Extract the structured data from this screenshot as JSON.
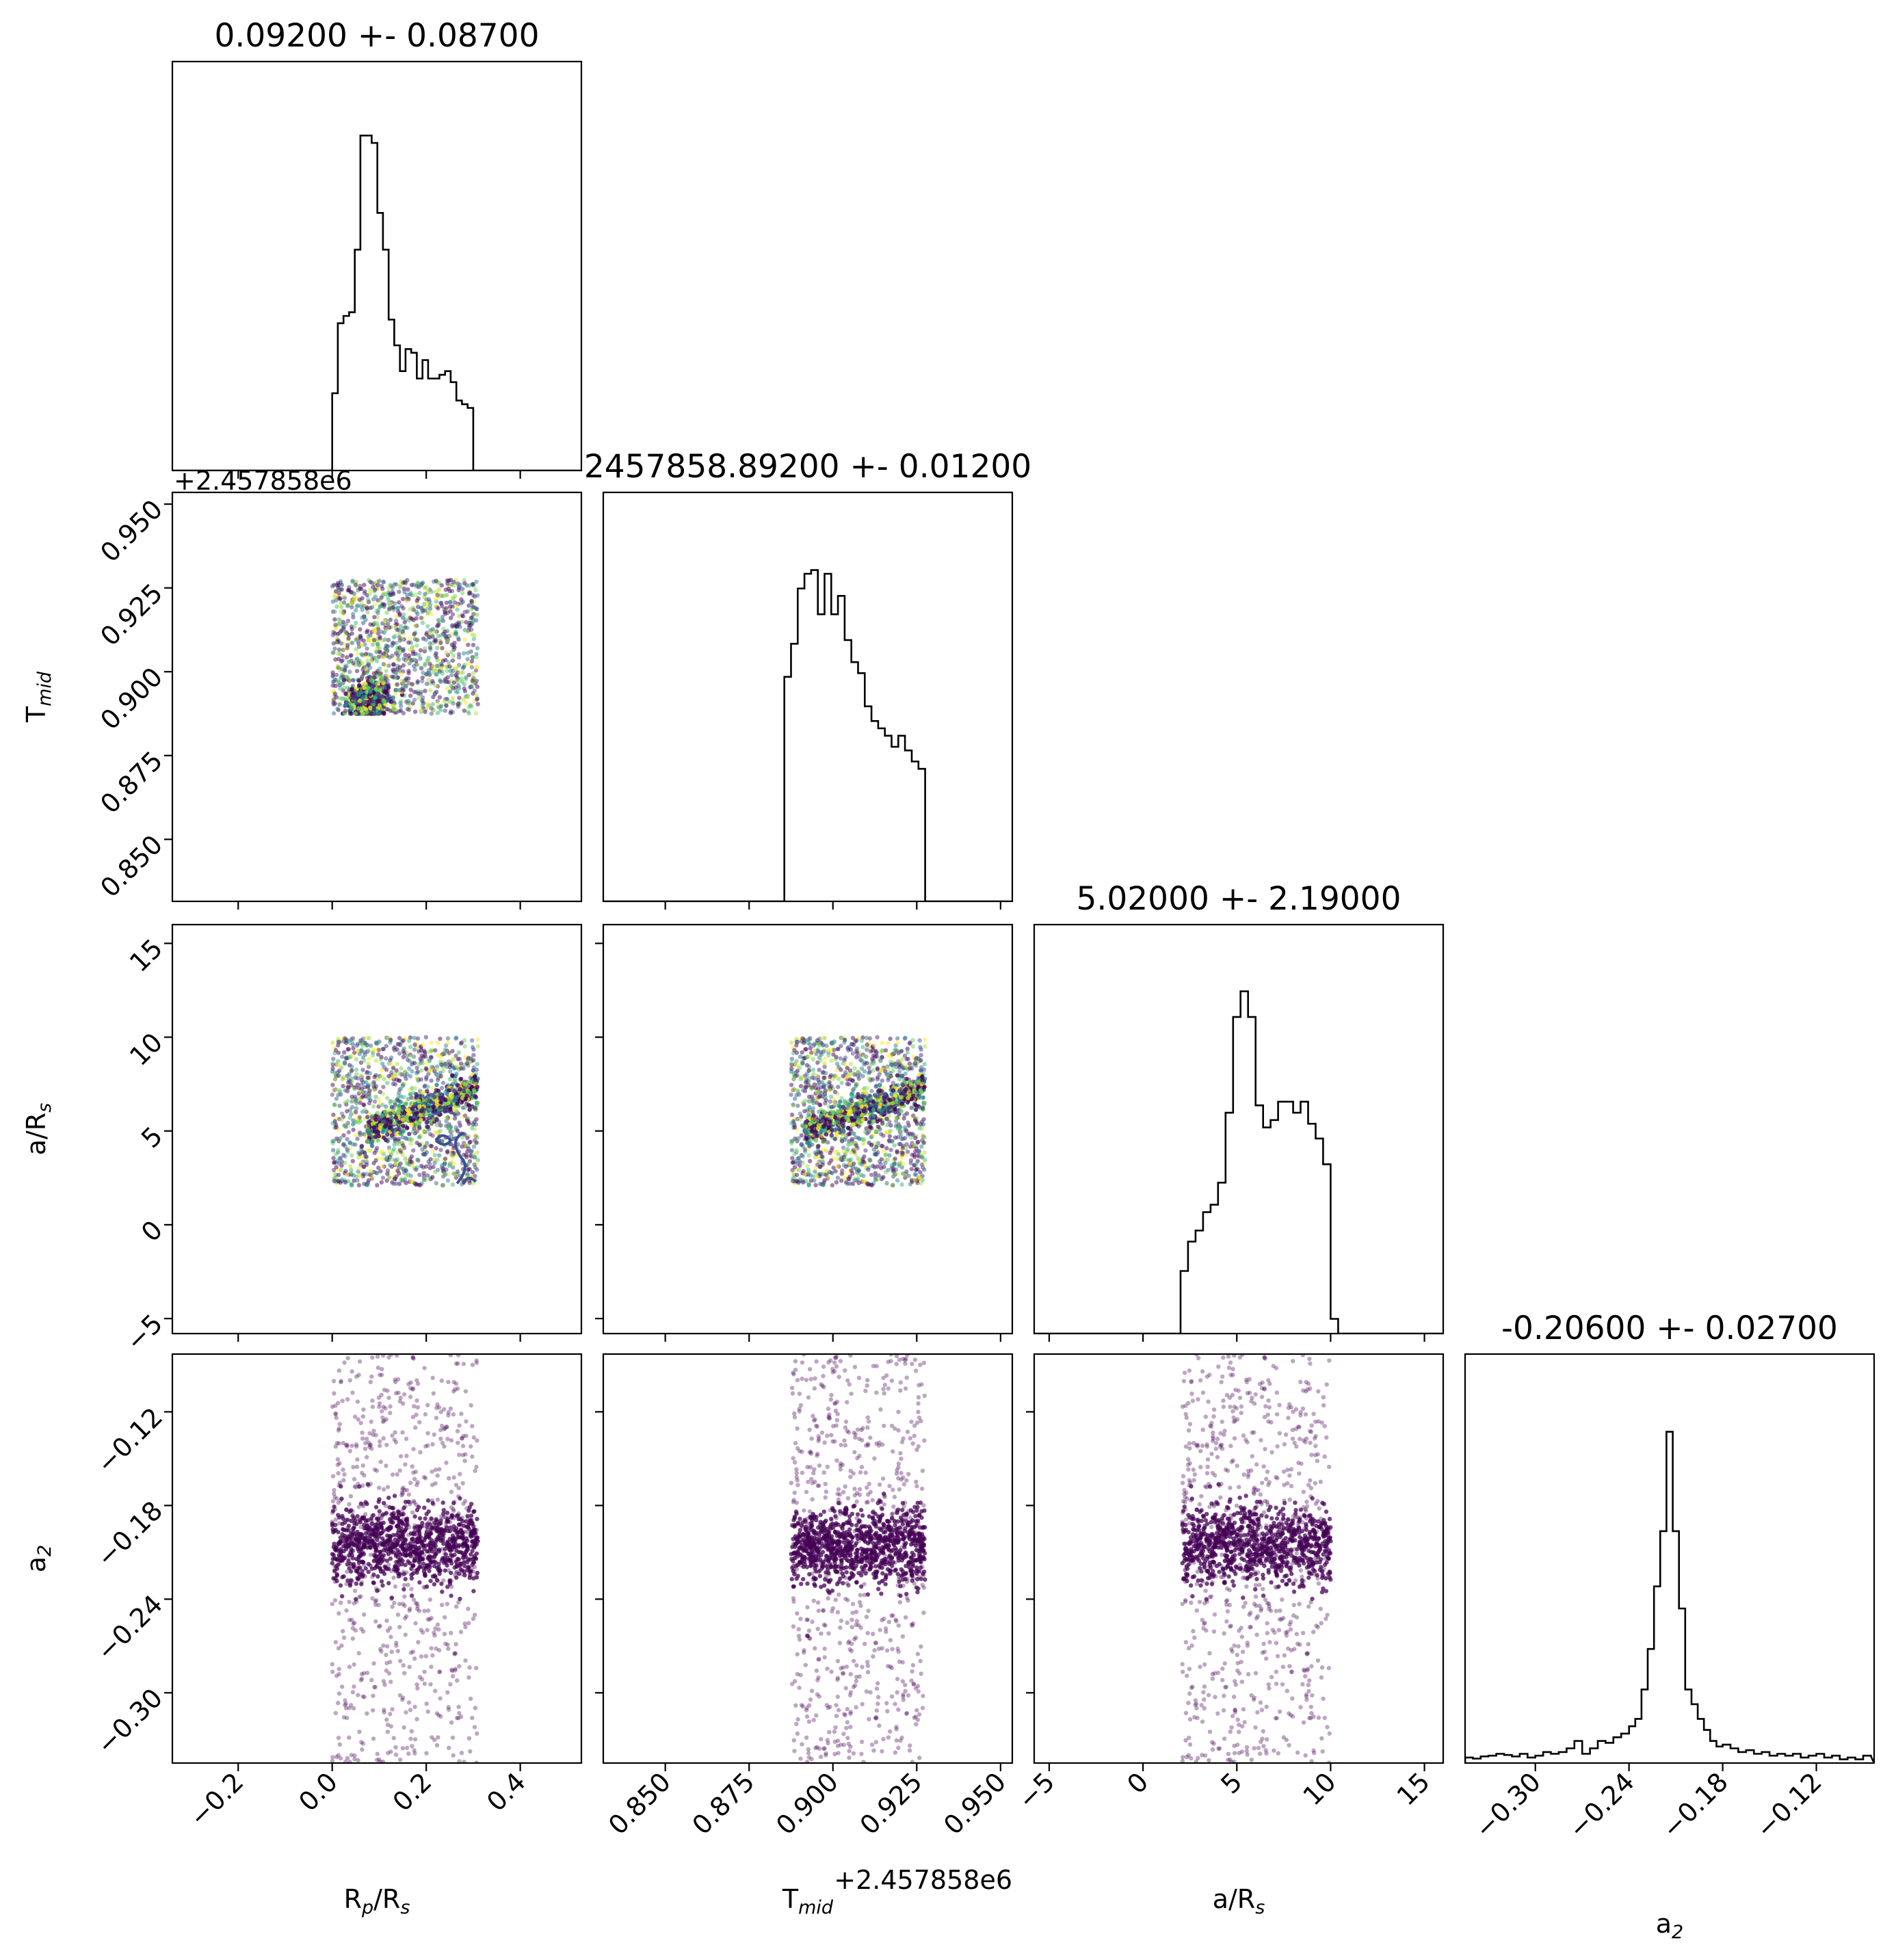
{
  "chart_data": {
    "type": "corner",
    "colors": {
      "hist": "#000000",
      "points": "#440154",
      "contour": "#3b528b"
    },
    "params": [
      {
        "key": "rp",
        "label_main": "R",
        "label_sub1": "p",
        "label_mid": "/R",
        "label_sub2": "s",
        "title": "0.09200 +- 0.08700",
        "range": [
          -0.34,
          0.53
        ],
        "ticks": [
          -0.2,
          0.0,
          0.2,
          0.4
        ],
        "tick_labels": [
          "−0.2",
          "0.0",
          "0.2",
          "0.4"
        ],
        "offset_text": "",
        "hist_counts": [
          0,
          0,
          0,
          0,
          0,
          0,
          0,
          0,
          0,
          0,
          0,
          0,
          0,
          0,
          0,
          0,
          0,
          0,
          0,
          0,
          0,
          0,
          0,
          0,
          0,
          0,
          0,
          0,
          0,
          0,
          0,
          0,
          0,
          0,
          0,
          0,
          0,
          0,
          0,
          0,
          0,
          0,
          0,
          0,
          0,
          0,
          0,
          0,
          0,
          0,
          0,
          0,
          0,
          0,
          0,
          0,
          0,
          0,
          0,
          0,
          0,
          0,
          0,
          0,
          0,
          0,
          0,
          0,
          0,
          0,
          0,
          0,
          0,
          0,
          0,
          0,
          0,
          0,
          0,
          0,
          0,
          0,
          0,
          0,
          0,
          0,
          0,
          0,
          0,
          0,
          0,
          0,
          0,
          0,
          0,
          0,
          0,
          0,
          0,
          0
        ],
        "hist_edges": [
          -0.34,
          0.53
        ],
        "hist_profile": [
          [
            -0.005,
            0.0
          ],
          [
            0.0,
            0.21
          ],
          [
            0.012,
            0.4
          ],
          [
            0.024,
            0.42
          ],
          [
            0.036,
            0.43
          ],
          [
            0.048,
            0.6
          ],
          [
            0.06,
            0.91
          ],
          [
            0.072,
            0.91
          ],
          [
            0.084,
            0.89
          ],
          [
            0.096,
            0.7
          ],
          [
            0.108,
            0.6
          ],
          [
            0.12,
            0.41
          ],
          [
            0.132,
            0.34
          ],
          [
            0.144,
            0.27
          ],
          [
            0.156,
            0.33
          ],
          [
            0.168,
            0.32
          ],
          [
            0.18,
            0.25
          ],
          [
            0.192,
            0.3
          ],
          [
            0.204,
            0.25
          ],
          [
            0.216,
            0.25
          ],
          [
            0.228,
            0.26
          ],
          [
            0.24,
            0.27
          ],
          [
            0.252,
            0.24
          ],
          [
            0.264,
            0.19
          ],
          [
            0.276,
            0.18
          ],
          [
            0.288,
            0.17
          ],
          [
            0.3,
            0.0
          ]
        ]
      },
      {
        "key": "tmid",
        "label_main": "T",
        "label_sub1": "mid",
        "label_mid": "",
        "label_sub2": "",
        "title": "2457858.89200 +- 0.01200",
        "range": [
          0.8315,
          0.9535
        ],
        "ticks": [
          0.85,
          0.875,
          0.9,
          0.925,
          0.95
        ],
        "tick_labels": [
          "0.850",
          "0.875",
          "0.900",
          "0.925",
          "0.950"
        ],
        "offset_text": "+2.457858e6",
        "hist_profile": [
          [
            0.8855,
            0.0
          ],
          [
            0.8855,
            0.61
          ],
          [
            0.8875,
            0.7
          ],
          [
            0.8895,
            0.85
          ],
          [
            0.8915,
            0.89
          ],
          [
            0.8935,
            0.9
          ],
          [
            0.8955,
            0.78
          ],
          [
            0.8975,
            0.89
          ],
          [
            0.8995,
            0.78
          ],
          [
            0.9015,
            0.83
          ],
          [
            0.9035,
            0.71
          ],
          [
            0.9055,
            0.65
          ],
          [
            0.9075,
            0.62
          ],
          [
            0.9095,
            0.53
          ],
          [
            0.9115,
            0.49
          ],
          [
            0.9135,
            0.47
          ],
          [
            0.9155,
            0.45
          ],
          [
            0.9175,
            0.42
          ],
          [
            0.9195,
            0.45
          ],
          [
            0.9215,
            0.41
          ],
          [
            0.9235,
            0.38
          ],
          [
            0.9255,
            0.36
          ],
          [
            0.9275,
            0.0
          ]
        ]
      },
      {
        "key": "ars",
        "label_main": "a/R",
        "label_sub1": "",
        "label_mid": "",
        "label_sub2": "s",
        "title": "5.02000 +- 2.19000",
        "range": [
          -5.8,
          16.0
        ],
        "ticks": [
          -5,
          0,
          5,
          10,
          15
        ],
        "tick_labels": [
          "−5",
          "0",
          "5",
          "10",
          "15"
        ],
        "offset_text": "",
        "hist_profile": [
          [
            2.0,
            0.0
          ],
          [
            2.0,
            0.17
          ],
          [
            2.4,
            0.25
          ],
          [
            2.8,
            0.28
          ],
          [
            3.2,
            0.33
          ],
          [
            3.6,
            0.35
          ],
          [
            4.0,
            0.41
          ],
          [
            4.4,
            0.6
          ],
          [
            4.8,
            0.86
          ],
          [
            5.2,
            0.93
          ],
          [
            5.6,
            0.86
          ],
          [
            6.0,
            0.62
          ],
          [
            6.4,
            0.56
          ],
          [
            6.8,
            0.58
          ],
          [
            7.2,
            0.63
          ],
          [
            7.6,
            0.63
          ],
          [
            8.0,
            0.6
          ],
          [
            8.4,
            0.63
          ],
          [
            8.8,
            0.57
          ],
          [
            9.2,
            0.53
          ],
          [
            9.6,
            0.46
          ],
          [
            10.0,
            0.04
          ],
          [
            10.4,
            0.0
          ]
        ]
      },
      {
        "key": "a2",
        "label_main": "a",
        "label_sub1": "",
        "label_mid": "",
        "label_sub2": "2",
        "title": "-0.20600 +- 0.02700",
        "range": [
          -0.345,
          -0.083
        ],
        "ticks": [
          -0.3,
          -0.24,
          -0.18,
          -0.12
        ],
        "tick_labels": [
          "−0.30",
          "−0.24",
          "−0.18",
          "−0.12"
        ],
        "offset_text": "",
        "hist_profile": [
          [
            -0.345,
            0.015
          ],
          [
            -0.34,
            0.012
          ],
          [
            -0.335,
            0.018
          ],
          [
            -0.33,
            0.02
          ],
          [
            -0.325,
            0.025
          ],
          [
            -0.32,
            0.022
          ],
          [
            -0.315,
            0.018
          ],
          [
            -0.31,
            0.025
          ],
          [
            -0.305,
            0.015
          ],
          [
            -0.3,
            0.02
          ],
          [
            -0.295,
            0.03
          ],
          [
            -0.29,
            0.025
          ],
          [
            -0.285,
            0.03
          ],
          [
            -0.28,
            0.04
          ],
          [
            -0.275,
            0.06
          ],
          [
            -0.27,
            0.025
          ],
          [
            -0.265,
            0.04
          ],
          [
            -0.26,
            0.06
          ],
          [
            -0.255,
            0.055
          ],
          [
            -0.25,
            0.07
          ],
          [
            -0.245,
            0.08
          ],
          [
            -0.24,
            0.1
          ],
          [
            -0.236,
            0.12
          ],
          [
            -0.232,
            0.2
          ],
          [
            -0.228,
            0.31
          ],
          [
            -0.224,
            0.48
          ],
          [
            -0.22,
            0.63
          ],
          [
            -0.216,
            0.9
          ],
          [
            -0.212,
            0.63
          ],
          [
            -0.208,
            0.42
          ],
          [
            -0.204,
            0.2
          ],
          [
            -0.2,
            0.16
          ],
          [
            -0.196,
            0.12
          ],
          [
            -0.192,
            0.09
          ],
          [
            -0.188,
            0.06
          ],
          [
            -0.184,
            0.045
          ],
          [
            -0.18,
            0.05
          ],
          [
            -0.175,
            0.04
          ],
          [
            -0.17,
            0.03
          ],
          [
            -0.165,
            0.035
          ],
          [
            -0.16,
            0.025
          ],
          [
            -0.155,
            0.03
          ],
          [
            -0.15,
            0.02
          ],
          [
            -0.145,
            0.025
          ],
          [
            -0.14,
            0.02
          ],
          [
            -0.135,
            0.025
          ],
          [
            -0.13,
            0.015
          ],
          [
            -0.125,
            0.02
          ],
          [
            -0.12,
            0.025
          ],
          [
            -0.115,
            0.015
          ],
          [
            -0.11,
            0.02
          ],
          [
            -0.105,
            0.01
          ],
          [
            -0.1,
            0.015
          ],
          [
            -0.095,
            0.01
          ],
          [
            -0.09,
            0.02
          ],
          [
            -0.085,
            0.018
          ]
        ]
      }
    ],
    "offset_label_top": "+2.457858e6",
    "scatter_ranges": {
      "rp": [
        0.0,
        0.31
      ],
      "tmid": [
        0.8875,
        0.9275
      ],
      "ars": [
        2.1,
        10.0
      ],
      "a2": [
        -0.345,
        -0.083
      ]
    },
    "dense_cores": {
      "rp": 0.075,
      "tmid": 0.8915,
      "ars": 5.0,
      "a2": -0.206
    }
  }
}
